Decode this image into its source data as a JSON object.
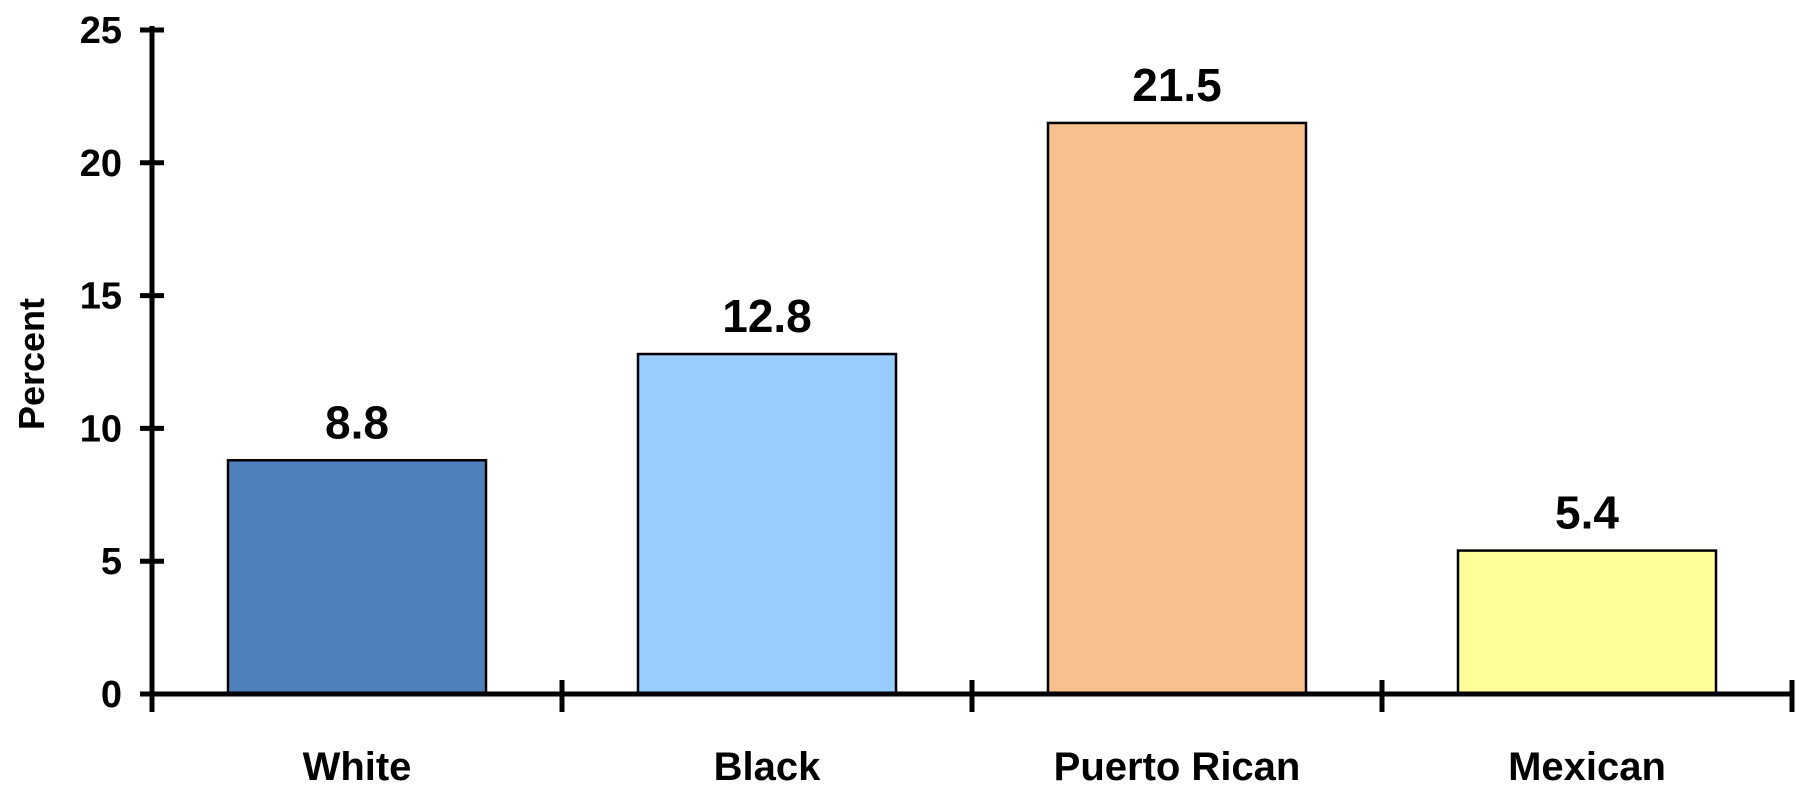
{
  "chart_data": {
    "type": "bar",
    "title": "",
    "xlabel": "",
    "ylabel": "Percent",
    "ylim": [
      0,
      25
    ],
    "yticks": [
      0,
      5,
      10,
      15,
      20,
      25
    ],
    "categories": [
      "White",
      "Black",
      "Puerto Rican",
      "Mexican"
    ],
    "values": [
      8.8,
      12.8,
      21.5,
      5.4
    ],
    "value_labels": [
      "8.8",
      "12.8",
      "21.5",
      "5.4"
    ],
    "colors": [
      "#4f81bd",
      "#99ccff",
      "#f9c08f",
      "#ffff99"
    ],
    "grid": false,
    "legend": "none"
  }
}
